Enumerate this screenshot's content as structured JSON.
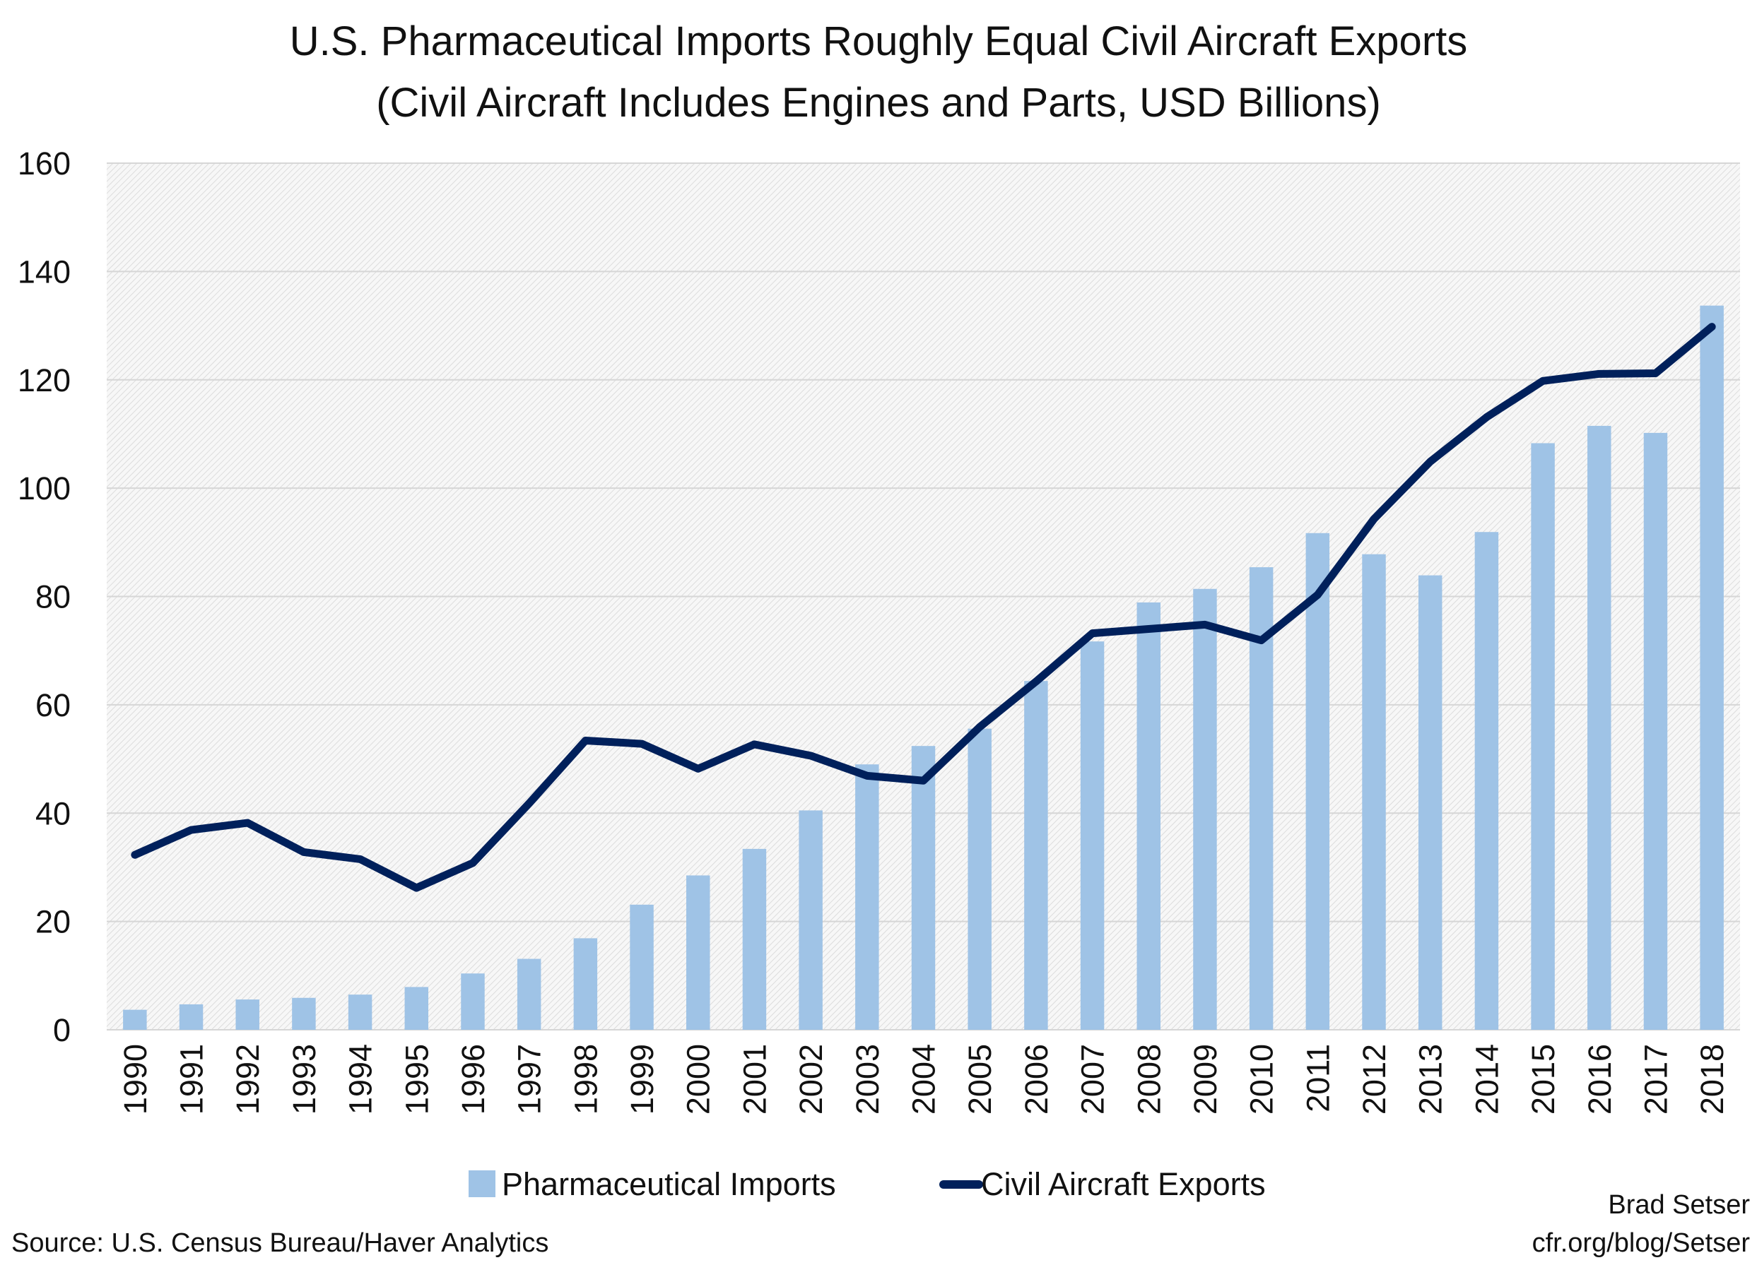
{
  "chart_data": {
    "type": "bar+line",
    "title": "U.S. Pharmaceutical Imports Roughly Equal Civil Aircraft Exports",
    "subtitle": "(Civil Aircraft Includes Engines and Parts, USD Billions)",
    "xlabel": "",
    "ylabel": "",
    "ylim": [
      0,
      160
    ],
    "yticks": [
      0,
      20,
      40,
      60,
      80,
      100,
      120,
      140,
      160
    ],
    "grid": true,
    "legend_position": "bottom",
    "categories": [
      "1990",
      "1991",
      "1992",
      "1993",
      "1994",
      "1995",
      "1996",
      "1997",
      "1998",
      "1999",
      "2000",
      "2001",
      "2002",
      "2003",
      "2004",
      "2005",
      "2006",
      "2007",
      "2008",
      "2009",
      "2010",
      "2011",
      "2012",
      "2013",
      "2014",
      "2015",
      "2016",
      "2017",
      "2018"
    ],
    "series": [
      {
        "name": "Pharmaceutical Imports",
        "type": "bar",
        "color": "#9fc3e6",
        "values": [
          3.7,
          4.7,
          5.6,
          5.9,
          6.5,
          7.9,
          10.4,
          13.1,
          16.9,
          23.1,
          28.5,
          33.4,
          40.5,
          49.0,
          52.4,
          55.6,
          64.4,
          71.7,
          78.9,
          81.4,
          85.4,
          91.7,
          87.8,
          83.9,
          91.9,
          108.3,
          111.5,
          110.2,
          133.7
        ]
      },
      {
        "name": "Civil Aircraft Exports",
        "type": "line",
        "color": "#00205b",
        "values": [
          32.3,
          36.9,
          38.2,
          32.8,
          31.5,
          26.2,
          30.8,
          41.8,
          53.4,
          52.8,
          48.2,
          52.7,
          50.6,
          46.9,
          46.0,
          55.9,
          64.3,
          73.2,
          74.0,
          74.8,
          71.9,
          80.3,
          94.3,
          104.9,
          113.1,
          119.8,
          121.1,
          121.2,
          129.8
        ]
      }
    ]
  },
  "source": "Source: U.S. Census Bureau/Haver Analytics",
  "credit": {
    "author": "Brad Setser",
    "url": "cfr.org/blog/Setser"
  }
}
